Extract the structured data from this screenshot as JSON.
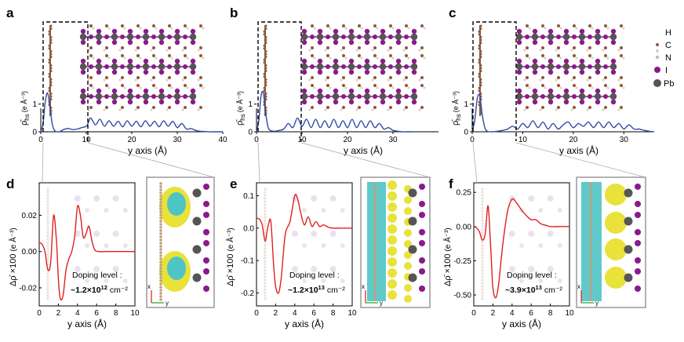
{
  "figure": {
    "panel_labels": [
      "a",
      "b",
      "c",
      "d",
      "e",
      "f"
    ],
    "legend": {
      "items": [
        {
          "label": "H",
          "color": "#e6c9c2"
        },
        {
          "label": "C",
          "color": "#8a5a3c"
        },
        {
          "label": "N",
          "color": "#b8b8d8"
        },
        {
          "label": "I",
          "color": "#8b1a8b"
        },
        {
          "label": "Pb",
          "color": "#555555"
        }
      ]
    },
    "top_xlabel": "y axis (Å)",
    "top_ylabel_main": "ρ̄",
    "top_ylabel_sub": "hs",
    "top_ylabel_unit": "(e Å⁻³)",
    "bottom_xlabel": "y axis (Å)",
    "bottom_ylabel_main": "Δρ̄ ×100",
    "bottom_ylabel_unit": "(e Å⁻³)",
    "doping_label": "Doping level :",
    "doping_unit": "cm⁻²",
    "axis_glyph_x": "x",
    "axis_glyph_y": "y",
    "colors": {
      "curve_top": "#2f4aa8",
      "curve_bottom": "#e02020",
      "iso_yellow": "#e8e23a",
      "iso_cyan": "#4fc4c4",
      "iodine": "#8b1a8b",
      "lead": "#555555",
      "carbon": "#8a5a3c"
    }
  },
  "chart_data": [
    {
      "panel": "a",
      "type": "line",
      "xlabel": "y axis (Å)",
      "ylabel": "ρ̄hs (e Å⁻³)",
      "xlim": [
        0,
        40
      ],
      "ylim": [
        0,
        1.7
      ],
      "xticks": [
        0,
        10,
        20,
        30,
        40
      ],
      "yticks": [
        0,
        1
      ],
      "x": [
        0,
        0.5,
        1,
        1.5,
        2,
        2.5,
        3,
        4,
        5,
        6,
        7,
        8,
        9,
        10,
        10.5,
        11,
        12,
        13,
        14,
        15,
        16,
        17,
        18,
        19,
        20,
        21,
        22,
        23,
        24,
        25,
        26,
        27,
        28,
        29,
        30,
        31,
        32,
        33,
        34,
        35,
        36,
        37,
        38,
        39,
        40
      ],
      "y": [
        0,
        0.3,
        1.1,
        1.4,
        0.9,
        0.3,
        0.05,
        0,
        0.08,
        0.12,
        0.08,
        0.1,
        0.15,
        0.2,
        0.35,
        0.5,
        0.25,
        0.45,
        0.2,
        0.4,
        0.2,
        0.38,
        0.18,
        0.4,
        0.2,
        0.38,
        0.18,
        0.4,
        0.2,
        0.38,
        0.18,
        0.4,
        0.2,
        0.38,
        0.15,
        0.3,
        0.1,
        0.12,
        0.05,
        0.02,
        0.01,
        0,
        0,
        0,
        0
      ]
    },
    {
      "panel": "b",
      "type": "line",
      "xlabel": "y axis (Å)",
      "ylabel": "ρ̄hs (e Å⁻³)",
      "xlim": [
        0,
        40
      ],
      "ylim": [
        0,
        1.7
      ],
      "xticks": [
        0,
        10,
        20,
        30
      ],
      "yticks": [
        0,
        1
      ],
      "x": [
        0,
        0.5,
        1,
        1.5,
        2,
        2.5,
        3,
        4,
        5,
        6,
        7,
        8,
        9,
        10,
        11,
        12,
        13,
        14,
        15,
        16,
        17,
        18,
        19,
        20,
        21,
        22,
        23,
        24,
        25,
        26,
        27,
        28,
        29,
        30,
        31,
        32,
        33,
        34
      ],
      "y": [
        0,
        0.4,
        1.3,
        1.4,
        0.7,
        0.2,
        0.05,
        0.02,
        0.05,
        0.1,
        0.3,
        0.15,
        0.5,
        0.2,
        0.45,
        0.15,
        0.45,
        0.15,
        0.4,
        0.15,
        0.45,
        0.15,
        0.4,
        0.15,
        0.45,
        0.15,
        0.4,
        0.15,
        0.4,
        0.15,
        0.3,
        0.1,
        0.15,
        0.05,
        0.02,
        0,
        0,
        0
      ]
    },
    {
      "panel": "c",
      "type": "line",
      "xlabel": "y axis (Å)",
      "ylabel": "ρ̄hs (e Å⁻³)",
      "xlim": [
        0,
        36
      ],
      "ylim": [
        0,
        1.7
      ],
      "xticks": [
        0,
        10,
        20,
        30
      ],
      "yticks": [
        0,
        1
      ],
      "x": [
        0,
        0.5,
        1,
        1.5,
        2,
        2.5,
        3,
        4,
        5,
        6,
        7,
        8,
        9,
        10,
        11,
        12,
        13,
        14,
        15,
        16,
        17,
        18,
        19,
        20,
        21,
        22,
        23,
        24,
        25,
        26,
        27,
        28,
        29,
        30,
        31,
        32,
        33,
        34,
        35,
        36
      ],
      "y": [
        0,
        0.4,
        1.2,
        1.3,
        0.6,
        0.15,
        0.02,
        0,
        0.02,
        0.05,
        0.1,
        0.2,
        0.1,
        0.3,
        0.15,
        0.4,
        0.15,
        0.35,
        0.1,
        0.3,
        0.1,
        0.25,
        0.35,
        0.15,
        0.3,
        0.2,
        0.35,
        0.15,
        0.35,
        0.15,
        0.35,
        0.15,
        0.3,
        0.1,
        0.25,
        0.1,
        0.1,
        0.05,
        0.02,
        0
      ]
    },
    {
      "panel": "d",
      "type": "line",
      "xlabel": "y axis (Å)",
      "ylabel": "Δρ̄ ×100 (e Å⁻³)",
      "xlim": [
        0,
        10
      ],
      "ylim": [
        -0.03,
        0.038
      ],
      "xticks": [
        0,
        2,
        4,
        6,
        8,
        10
      ],
      "yticks": [
        -0.02,
        0.0,
        0.02
      ],
      "ytick_labels": [
        "-0.02",
        "0.00",
        "0.02"
      ],
      "x": [
        0,
        0.3,
        0.6,
        0.9,
        1.2,
        1.5,
        1.8,
        2.0,
        2.2,
        2.5,
        2.8,
        3.1,
        3.4,
        3.7,
        4.0,
        4.3,
        4.6,
        4.9,
        5.2,
        5.5,
        5.8,
        6.2,
        7,
        8,
        9,
        10
      ],
      "y": [
        0.005,
        0.004,
        0.0,
        -0.01,
        -0.006,
        0.02,
        0.006,
        -0.015,
        -0.026,
        -0.024,
        -0.01,
        -0.004,
        0.0,
        0.008,
        0.025,
        0.02,
        0.008,
        0.01,
        0.014,
        0.006,
        0.001,
        0.0,
        0.0,
        0.0,
        0.0,
        0.0
      ],
      "annotation_text": "Doping level :",
      "annotation_value": "~1.2×10¹² cm⁻²",
      "annotation_mantissa": "~1.2×10",
      "annotation_exponent": "12"
    },
    {
      "panel": "e",
      "type": "line",
      "xlabel": "y axis (Å)",
      "ylabel": "Δρ̄ ×100 (e Å⁻³)",
      "xlim": [
        0,
        10
      ],
      "ylim": [
        -0.24,
        0.14
      ],
      "xticks": [
        0,
        2,
        4,
        6,
        8,
        10
      ],
      "yticks": [
        -0.2,
        -0.1,
        0.0,
        0.1
      ],
      "ytick_labels": [
        "-0.2",
        "-0.1",
        "0.0",
        "0.1"
      ],
      "x": [
        0,
        0.3,
        0.6,
        0.9,
        1.2,
        1.5,
        1.8,
        2.0,
        2.3,
        2.6,
        3.0,
        3.5,
        4.0,
        4.3,
        4.6,
        5.0,
        5.4,
        5.8,
        6.2,
        6.6,
        7.0,
        7.5,
        8,
        9,
        10
      ],
      "y": [
        0.03,
        0.028,
        0.01,
        -0.04,
        0.005,
        0.02,
        -0.12,
        -0.18,
        -0.2,
        -0.15,
        -0.02,
        0.02,
        0.1,
        0.09,
        0.05,
        0.01,
        0.035,
        0.005,
        0.02,
        0.005,
        0.01,
        0.003,
        0.0,
        0.0,
        0.0
      ],
      "annotation_text": "Doping level :",
      "annotation_value": "~1.2×10¹³ cm⁻²",
      "annotation_mantissa": "~1.2×10",
      "annotation_exponent": "13"
    },
    {
      "panel": "f",
      "type": "line",
      "xlabel": "y axis (Å)",
      "ylabel": "Δρ̄ ×100 (e Å⁻³)",
      "xlim": [
        0,
        10
      ],
      "ylim": [
        -0.58,
        0.32
      ],
      "xticks": [
        0,
        2,
        4,
        6,
        8,
        10
      ],
      "yticks": [
        -0.5,
        -0.25,
        0.0,
        0.25
      ],
      "ytick_labels": [
        "-0.50",
        "-0.25",
        "0.00",
        "0.25"
      ],
      "x": [
        0,
        0.3,
        0.6,
        0.9,
        1.2,
        1.5,
        1.8,
        2.0,
        2.3,
        2.6,
        3.0,
        3.5,
        4.0,
        4.5,
        5.0,
        5.5,
        6.0,
        6.5,
        7.0,
        7.5,
        8,
        9,
        10
      ],
      "y": [
        0.0,
        -0.01,
        -0.04,
        -0.1,
        -0.05,
        0.15,
        -0.2,
        -0.45,
        -0.52,
        -0.42,
        -0.15,
        0.1,
        0.2,
        0.17,
        0.12,
        0.08,
        0.05,
        0.05,
        0.02,
        0.01,
        0.0,
        0.0,
        0.0
      ],
      "annotation_text": "Doping level :",
      "annotation_value": "~3.9×10¹³ cm⁻²",
      "annotation_mantissa": "~3.9×10",
      "annotation_exponent": "13"
    }
  ]
}
